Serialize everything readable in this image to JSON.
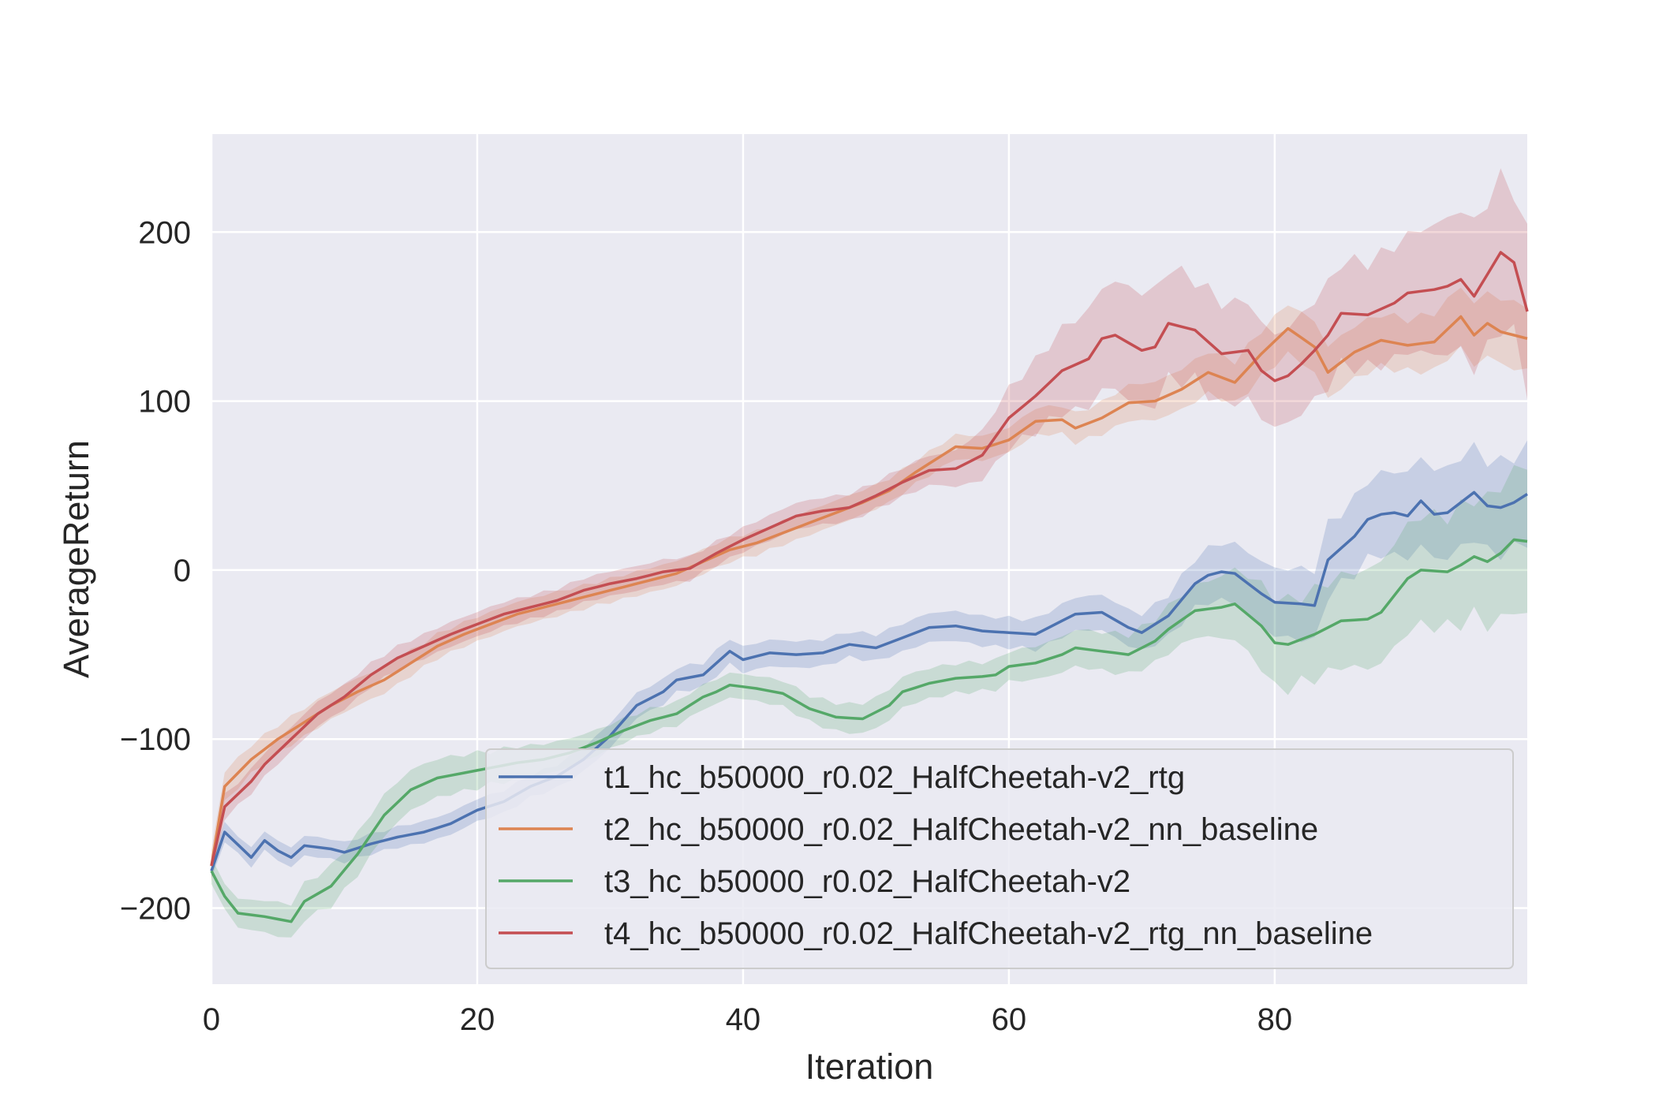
{
  "chart_data": {
    "type": "line",
    "xlabel": "Iteration",
    "ylabel": "AverageReturn",
    "xlim": [
      0,
      99
    ],
    "ylim": [
      -245,
      258
    ],
    "xticks": [
      0,
      20,
      40,
      60,
      80
    ],
    "xtick_labels": [
      "0",
      "20",
      "40",
      "60",
      "80"
    ],
    "yticks": [
      -200,
      -100,
      0,
      100,
      200
    ],
    "ytick_labels": [
      "−200",
      "−100",
      "0",
      "100",
      "200"
    ],
    "grid": true,
    "legend_position": "lower-right",
    "style": {
      "plot_bg": "#eaeaf2",
      "grid_color": "#ffffff",
      "band_opacity": 0.22
    },
    "series": [
      {
        "name": "t1_hc_b50000_r0.02_HalfCheetah-v2_rtg",
        "color": "#4c72b0",
        "anchors": [
          [
            0,
            -178
          ],
          [
            1,
            -155
          ],
          [
            3,
            -170
          ],
          [
            4,
            -160
          ],
          [
            5,
            -166
          ],
          [
            6,
            -170
          ],
          [
            7,
            -163
          ],
          [
            9,
            -165
          ],
          [
            10,
            -167
          ],
          [
            12,
            -162
          ],
          [
            14,
            -158
          ],
          [
            16,
            -155
          ],
          [
            18,
            -150
          ],
          [
            20,
            -142
          ],
          [
            22,
            -137
          ],
          [
            24,
            -128
          ],
          [
            26,
            -122
          ],
          [
            28,
            -112
          ],
          [
            30,
            -98
          ],
          [
            32,
            -80
          ],
          [
            34,
            -72
          ],
          [
            35,
            -65
          ],
          [
            37,
            -62
          ],
          [
            39,
            -48
          ],
          [
            40,
            -53
          ],
          [
            42,
            -49
          ],
          [
            44,
            -50
          ],
          [
            46,
            -49
          ],
          [
            48,
            -44
          ],
          [
            50,
            -46
          ],
          [
            52,
            -40
          ],
          [
            54,
            -34
          ],
          [
            56,
            -33
          ],
          [
            58,
            -36
          ],
          [
            60,
            -37
          ],
          [
            62,
            -38
          ],
          [
            64,
            -30
          ],
          [
            65,
            -26
          ],
          [
            67,
            -25
          ],
          [
            69,
            -34
          ],
          [
            70,
            -37
          ],
          [
            72,
            -27
          ],
          [
            74,
            -8
          ],
          [
            75,
            -3
          ],
          [
            76,
            -1
          ],
          [
            77,
            -2
          ],
          [
            78,
            -8
          ],
          [
            79,
            -14
          ],
          [
            80,
            -19
          ],
          [
            82,
            -20
          ],
          [
            83,
            -21
          ],
          [
            84,
            6
          ],
          [
            86,
            20
          ],
          [
            87,
            30
          ],
          [
            88,
            33
          ],
          [
            89,
            34
          ],
          [
            90,
            32
          ],
          [
            91,
            41
          ],
          [
            92,
            33
          ],
          [
            93,
            34
          ],
          [
            94,
            40
          ],
          [
            95,
            46
          ],
          [
            96,
            38
          ],
          [
            97,
            37
          ],
          [
            98,
            40
          ],
          [
            99,
            45
          ]
        ],
        "spread": [
          [
            0,
            6
          ],
          [
            30,
            8
          ],
          [
            50,
            9
          ],
          [
            60,
            10
          ],
          [
            70,
            12
          ],
          [
            75,
            18
          ],
          [
            80,
            22
          ],
          [
            85,
            25
          ],
          [
            90,
            28
          ],
          [
            99,
            32
          ]
        ]
      },
      {
        "name": "t2_hc_b50000_r0.02_HalfCheetah-v2_nn_baseline",
        "color": "#dd8452",
        "anchors": [
          [
            0,
            -175
          ],
          [
            1,
            -128
          ],
          [
            3,
            -112
          ],
          [
            5,
            -100
          ],
          [
            7,
            -90
          ],
          [
            9,
            -80
          ],
          [
            11,
            -72
          ],
          [
            13,
            -65
          ],
          [
            15,
            -55
          ],
          [
            17,
            -45
          ],
          [
            19,
            -38
          ],
          [
            21,
            -32
          ],
          [
            23,
            -26
          ],
          [
            25,
            -22
          ],
          [
            27,
            -18
          ],
          [
            29,
            -14
          ],
          [
            31,
            -10
          ],
          [
            33,
            -6
          ],
          [
            35,
            -2
          ],
          [
            37,
            5
          ],
          [
            39,
            12
          ],
          [
            41,
            16
          ],
          [
            43,
            22
          ],
          [
            45,
            28
          ],
          [
            47,
            34
          ],
          [
            49,
            40
          ],
          [
            51,
            47
          ],
          [
            53,
            58
          ],
          [
            55,
            68
          ],
          [
            56,
            73
          ],
          [
            58,
            72
          ],
          [
            60,
            77
          ],
          [
            62,
            88
          ],
          [
            64,
            89
          ],
          [
            65,
            84
          ],
          [
            67,
            90
          ],
          [
            69,
            99
          ],
          [
            71,
            100
          ],
          [
            73,
            107
          ],
          [
            75,
            117
          ],
          [
            77,
            111
          ],
          [
            79,
            128
          ],
          [
            81,
            143
          ],
          [
            83,
            132
          ],
          [
            84,
            117
          ],
          [
            86,
            129
          ],
          [
            88,
            136
          ],
          [
            90,
            133
          ],
          [
            92,
            135
          ],
          [
            94,
            150
          ],
          [
            95,
            139
          ],
          [
            96,
            146
          ],
          [
            97,
            141
          ],
          [
            98,
            139
          ],
          [
            99,
            137
          ]
        ],
        "spread": [
          [
            0,
            10
          ],
          [
            20,
            8
          ],
          [
            40,
            8
          ],
          [
            60,
            8
          ],
          [
            70,
            12
          ],
          [
            80,
            16
          ],
          [
            90,
            18
          ],
          [
            99,
            22
          ]
        ]
      },
      {
        "name": "t3_hc_b50000_r0.02_HalfCheetah-v2",
        "color": "#55a868",
        "anchors": [
          [
            0,
            -178
          ],
          [
            1,
            -193
          ],
          [
            2,
            -203
          ],
          [
            4,
            -205
          ],
          [
            6,
            -208
          ],
          [
            7,
            -196
          ],
          [
            9,
            -187
          ],
          [
            11,
            -168
          ],
          [
            13,
            -145
          ],
          [
            15,
            -130
          ],
          [
            17,
            -123
          ],
          [
            19,
            -120
          ],
          [
            21,
            -117
          ],
          [
            23,
            -114
          ],
          [
            25,
            -112
          ],
          [
            27,
            -108
          ],
          [
            29,
            -102
          ],
          [
            31,
            -95
          ],
          [
            33,
            -89
          ],
          [
            35,
            -85
          ],
          [
            37,
            -75
          ],
          [
            38,
            -72
          ],
          [
            39,
            -68
          ],
          [
            41,
            -70
          ],
          [
            43,
            -73
          ],
          [
            45,
            -82
          ],
          [
            47,
            -87
          ],
          [
            49,
            -88
          ],
          [
            51,
            -80
          ],
          [
            52,
            -72
          ],
          [
            54,
            -67
          ],
          [
            56,
            -64
          ],
          [
            58,
            -63
          ],
          [
            59,
            -62
          ],
          [
            60,
            -57
          ],
          [
            62,
            -55
          ],
          [
            64,
            -50
          ],
          [
            65,
            -46
          ],
          [
            67,
            -48
          ],
          [
            69,
            -50
          ],
          [
            71,
            -42
          ],
          [
            72,
            -35
          ],
          [
            74,
            -24
          ],
          [
            76,
            -22
          ],
          [
            77,
            -20
          ],
          [
            79,
            -33
          ],
          [
            80,
            -43
          ],
          [
            81,
            -44
          ],
          [
            83,
            -38
          ],
          [
            85,
            -30
          ],
          [
            87,
            -29
          ],
          [
            88,
            -25
          ],
          [
            89,
            -15
          ],
          [
            90,
            -5
          ],
          [
            91,
            0
          ],
          [
            93,
            -1
          ],
          [
            94,
            3
          ],
          [
            95,
            8
          ],
          [
            96,
            5
          ],
          [
            97,
            10
          ],
          [
            98,
            18
          ],
          [
            99,
            17
          ]
        ],
        "spread": [
          [
            0,
            8
          ],
          [
            10,
            14
          ],
          [
            20,
            12
          ],
          [
            30,
            8
          ],
          [
            40,
            8
          ],
          [
            50,
            10
          ],
          [
            60,
            10
          ],
          [
            70,
            14
          ],
          [
            75,
            18
          ],
          [
            80,
            30
          ],
          [
            85,
            30
          ],
          [
            90,
            35
          ],
          [
            95,
            40
          ],
          [
            99,
            48
          ]
        ]
      },
      {
        "name": "t4_hc_b50000_r0.02_HalfCheetah-v2_rtg_nn_baseline",
        "color": "#c44e52",
        "anchors": [
          [
            0,
            -175
          ],
          [
            1,
            -140
          ],
          [
            3,
            -125
          ],
          [
            4,
            -115
          ],
          [
            6,
            -100
          ],
          [
            8,
            -85
          ],
          [
            10,
            -75
          ],
          [
            12,
            -62
          ],
          [
            14,
            -52
          ],
          [
            16,
            -45
          ],
          [
            18,
            -38
          ],
          [
            20,
            -32
          ],
          [
            22,
            -26
          ],
          [
            24,
            -22
          ],
          [
            26,
            -18
          ],
          [
            28,
            -12
          ],
          [
            30,
            -8
          ],
          [
            32,
            -5
          ],
          [
            34,
            -1
          ],
          [
            36,
            1
          ],
          [
            38,
            10
          ],
          [
            40,
            18
          ],
          [
            42,
            25
          ],
          [
            44,
            32
          ],
          [
            46,
            35
          ],
          [
            48,
            37
          ],
          [
            50,
            44
          ],
          [
            52,
            52
          ],
          [
            54,
            59
          ],
          [
            56,
            60
          ],
          [
            58,
            68
          ],
          [
            60,
            90
          ],
          [
            62,
            103
          ],
          [
            64,
            118
          ],
          [
            66,
            125
          ],
          [
            67,
            137
          ],
          [
            68,
            139
          ],
          [
            70,
            130
          ],
          [
            71,
            132
          ],
          [
            72,
            146
          ],
          [
            74,
            142
          ],
          [
            76,
            128
          ],
          [
            78,
            130
          ],
          [
            79,
            118
          ],
          [
            80,
            112
          ],
          [
            81,
            115
          ],
          [
            82,
            122
          ],
          [
            83,
            130
          ],
          [
            84,
            139
          ],
          [
            85,
            152
          ],
          [
            87,
            151
          ],
          [
            89,
            158
          ],
          [
            90,
            164
          ],
          [
            92,
            166
          ],
          [
            93,
            168
          ],
          [
            94,
            172
          ],
          [
            95,
            162
          ],
          [
            96,
            175
          ],
          [
            97,
            188
          ],
          [
            98,
            182
          ],
          [
            99,
            153
          ]
        ],
        "spread": [
          [
            0,
            8
          ],
          [
            20,
            8
          ],
          [
            40,
            8
          ],
          [
            55,
            10
          ],
          [
            60,
            20
          ],
          [
            65,
            30
          ],
          [
            70,
            38
          ],
          [
            75,
            35
          ],
          [
            80,
            30
          ],
          [
            85,
            35
          ],
          [
            90,
            38
          ],
          [
            95,
            48
          ],
          [
            99,
            52
          ]
        ]
      }
    ]
  }
}
